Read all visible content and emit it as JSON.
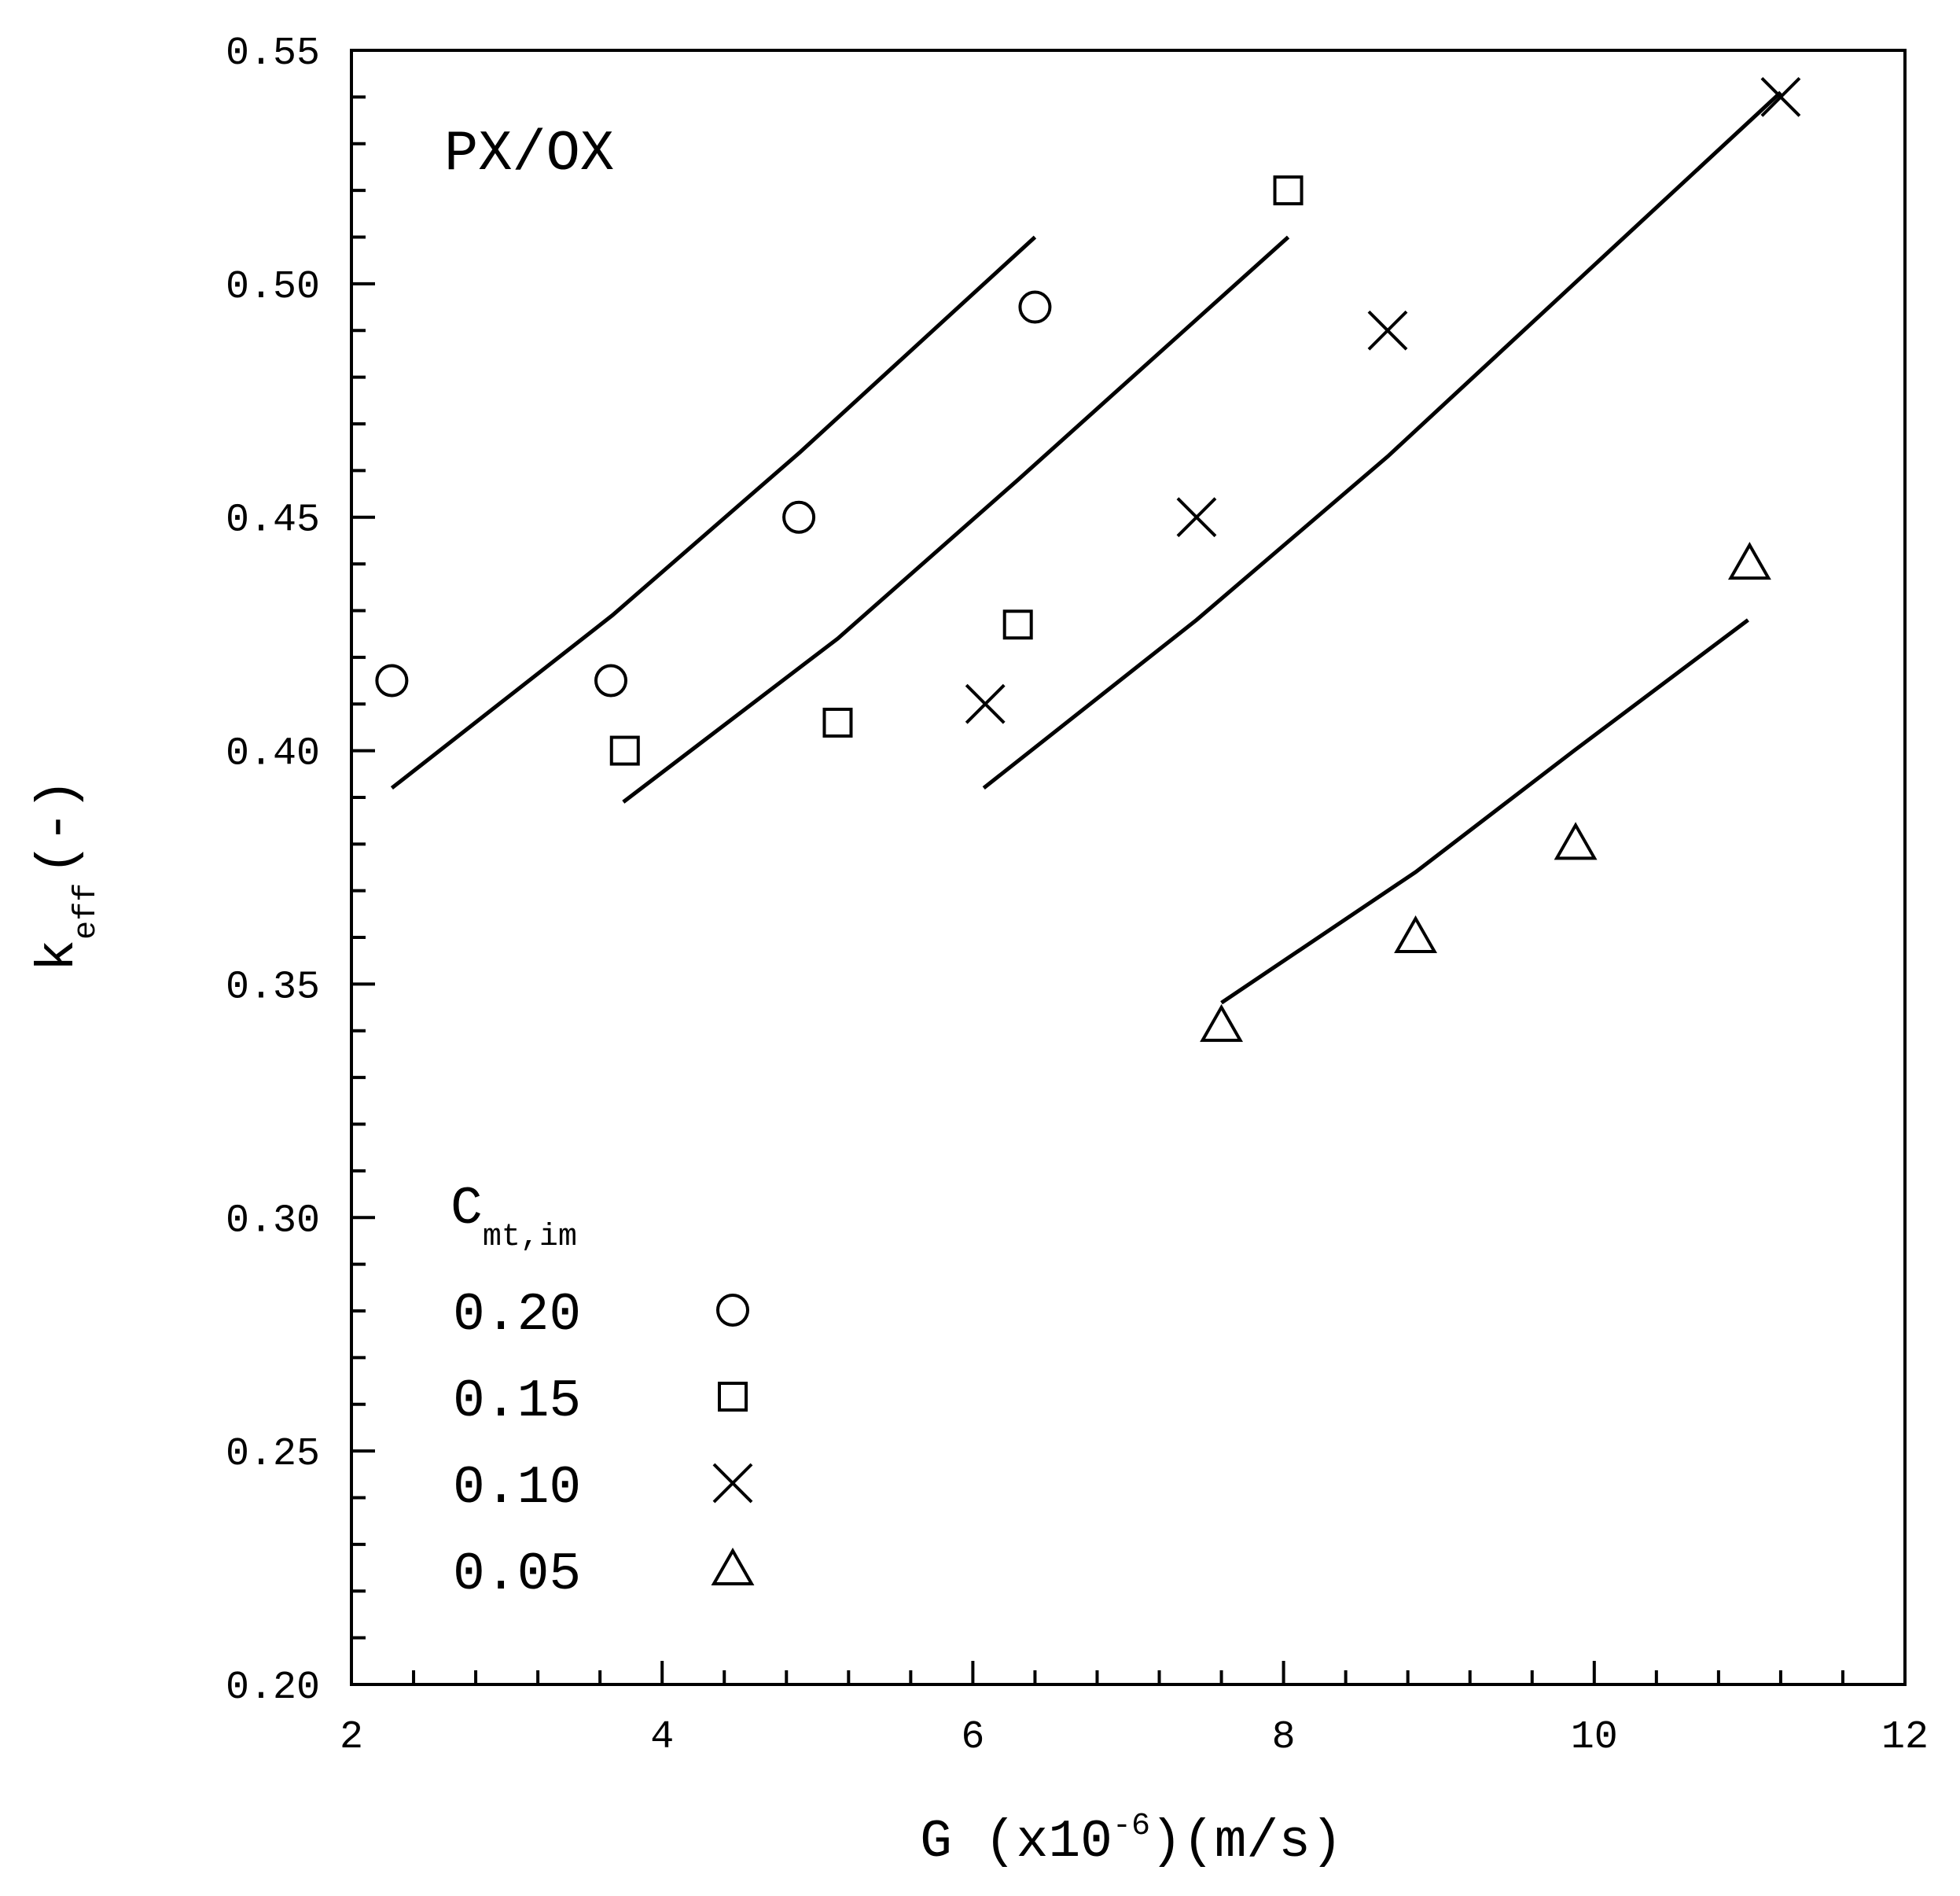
{
  "chart_data": {
    "type": "scatter",
    "annotation": "PX/OX",
    "x_label": [
      "G (x10",
      "-6",
      ")(m/s)"
    ],
    "y_label": [
      "k",
      "eff",
      "(-)"
    ],
    "legend_title": [
      "C",
      "mt,im"
    ],
    "legend": "lower-left",
    "xlim": [
      2,
      12
    ],
    "xticks": [
      2,
      4,
      6,
      8,
      10,
      12
    ],
    "x_minor_ticks": [
      2.4,
      2.8,
      3.2,
      3.6,
      4.4,
      4.8,
      5.2,
      5.6,
      6.4,
      6.8,
      7.2,
      7.6,
      8.4,
      8.8,
      9.2,
      9.6,
      10.4,
      10.8,
      11.2,
      11.6
    ],
    "ylim": [
      0.2,
      0.55
    ],
    "yticks": [
      {
        "value": 0.2,
        "label": "0.20"
      },
      {
        "value": 0.25,
        "label": "0.25"
      },
      {
        "value": 0.3,
        "label": "0.30"
      },
      {
        "value": 0.35,
        "label": "0.35"
      },
      {
        "value": 0.4,
        "label": "0.40"
      },
      {
        "value": 0.45,
        "label": "0.45"
      },
      {
        "value": 0.5,
        "label": "0.50"
      },
      {
        "value": 0.55,
        "label": "0.55"
      }
    ],
    "y_minor_ticks": [
      0.21,
      0.22,
      0.23,
      0.24,
      0.26,
      0.27,
      0.28,
      0.29,
      0.31,
      0.32,
      0.33,
      0.34,
      0.36,
      0.37,
      0.38,
      0.39,
      0.41,
      0.42,
      0.43,
      0.44,
      0.46,
      0.47,
      0.48,
      0.49,
      0.51,
      0.52,
      0.53,
      0.54
    ],
    "series": [
      {
        "name": "0.20",
        "marker": "circle",
        "color": "#000000",
        "x": [
          2.26,
          3.67,
          4.88,
          6.4
        ],
        "values": [
          0.415,
          0.415,
          0.45,
          0.495
        ],
        "fit_x": [
          2.26,
          3.68,
          4.89,
          6.4
        ],
        "fit_values": [
          0.392,
          0.429,
          0.464,
          0.51
        ]
      },
      {
        "name": "0.15",
        "marker": "square",
        "color": "#000000",
        "x": [
          3.76,
          5.13,
          6.29,
          8.03
        ],
        "values": [
          0.4,
          0.406,
          0.427,
          0.52
        ],
        "fit_x": [
          3.75,
          5.13,
          6.29,
          8.03
        ],
        "fit_values": [
          0.389,
          0.424,
          0.458,
          0.51
        ]
      },
      {
        "name": "0.10",
        "marker": "cross",
        "color": "#000000",
        "x": [
          6.08,
          7.44,
          8.67,
          11.2
        ],
        "values": [
          0.41,
          0.45,
          0.49,
          0.54
        ],
        "fit_x": [
          6.07,
          7.44,
          8.67,
          11.2
        ],
        "fit_values": [
          0.392,
          0.428,
          0.463,
          0.541
        ]
      },
      {
        "name": "0.05",
        "marker": "triangle",
        "color": "#000000",
        "x": [
          7.6,
          8.85,
          9.88,
          11.0
        ],
        "values": [
          0.341,
          0.36,
          0.38,
          0.44
        ],
        "fit_x": [
          7.6,
          8.85,
          9.87,
          10.99
        ],
        "fit_values": [
          0.346,
          0.374,
          0.4,
          0.428
        ]
      }
    ]
  }
}
